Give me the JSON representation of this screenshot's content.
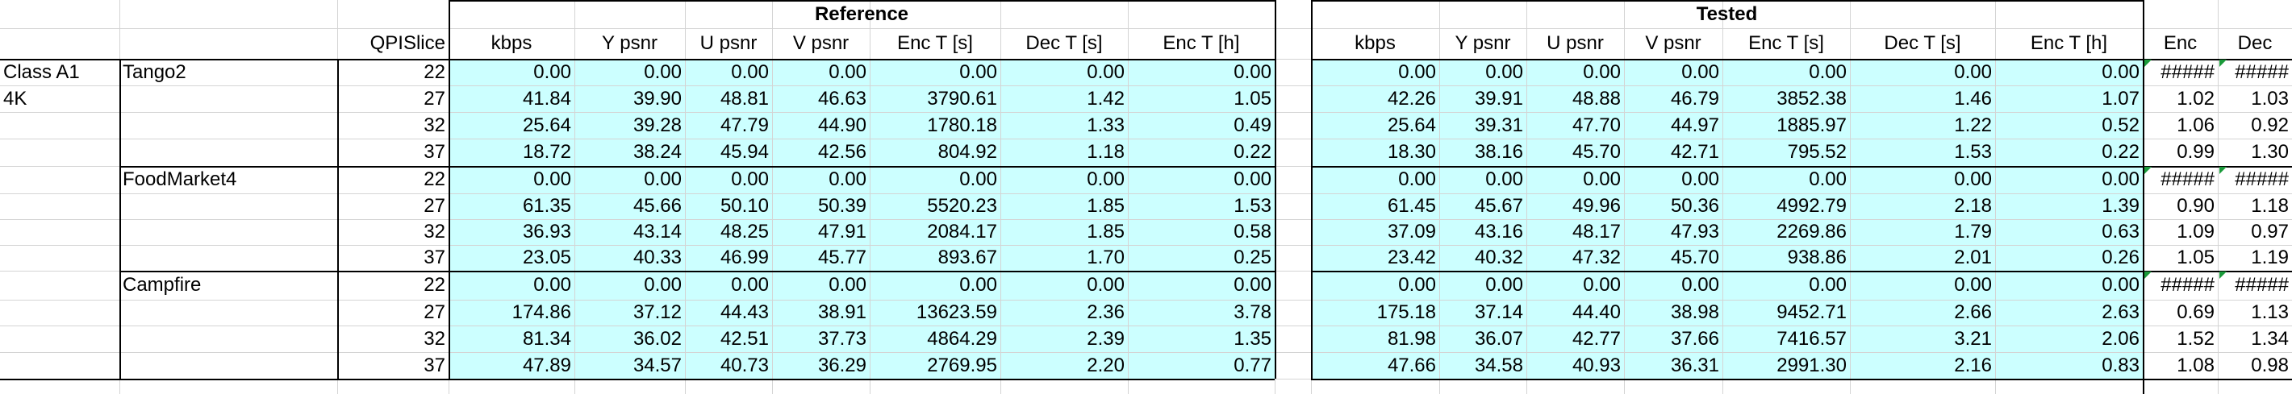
{
  "headers": {
    "reference_group": "Reference",
    "tested_group": "Tested",
    "qp_label": "QPISlice",
    "reference_columns": [
      "kbps",
      "Y psnr",
      "U psnr",
      "V psnr",
      "Enc T [s]",
      "Dec T [s]",
      "Enc T [h]"
    ],
    "tested_columns": [
      "kbps",
      "Y psnr",
      "U psnr",
      "V psnr",
      "Enc T [s]",
      "Dec T [s]",
      "Enc T [h]"
    ],
    "ratio_columns": [
      "Enc",
      "Dec"
    ]
  },
  "class_label": [
    "Class A1",
    "4K"
  ],
  "sequences": [
    {
      "name": "Tango2",
      "rows": [
        {
          "qp": "22",
          "ref": [
            "0.00",
            "0.00",
            "0.00",
            "0.00",
            "0.00",
            "0.00",
            "0.00"
          ],
          "test": [
            "0.00",
            "0.00",
            "0.00",
            "0.00",
            "0.00",
            "0.00",
            "0.00"
          ],
          "ratio": [
            "#####",
            "#####"
          ]
        },
        {
          "qp": "27",
          "ref": [
            "41.84",
            "39.90",
            "48.81",
            "46.63",
            "3790.61",
            "1.42",
            "1.05"
          ],
          "test": [
            "42.26",
            "39.91",
            "48.88",
            "46.79",
            "3852.38",
            "1.46",
            "1.07"
          ],
          "ratio": [
            "1.02",
            "1.03"
          ]
        },
        {
          "qp": "32",
          "ref": [
            "25.64",
            "39.28",
            "47.79",
            "44.90",
            "1780.18",
            "1.33",
            "0.49"
          ],
          "test": [
            "25.64",
            "39.31",
            "47.70",
            "44.97",
            "1885.97",
            "1.22",
            "0.52"
          ],
          "ratio": [
            "1.06",
            "0.92"
          ]
        },
        {
          "qp": "37",
          "ref": [
            "18.72",
            "38.24",
            "45.94",
            "42.56",
            "804.92",
            "1.18",
            "0.22"
          ],
          "test": [
            "18.30",
            "38.16",
            "45.70",
            "42.71",
            "795.52",
            "1.53",
            "0.22"
          ],
          "ratio": [
            "0.99",
            "1.30"
          ]
        }
      ]
    },
    {
      "name": "FoodMarket4",
      "rows": [
        {
          "qp": "22",
          "ref": [
            "0.00",
            "0.00",
            "0.00",
            "0.00",
            "0.00",
            "0.00",
            "0.00"
          ],
          "test": [
            "0.00",
            "0.00",
            "0.00",
            "0.00",
            "0.00",
            "0.00",
            "0.00"
          ],
          "ratio": [
            "#####",
            "#####"
          ]
        },
        {
          "qp": "27",
          "ref": [
            "61.35",
            "45.66",
            "50.10",
            "50.39",
            "5520.23",
            "1.85",
            "1.53"
          ],
          "test": [
            "61.45",
            "45.67",
            "49.96",
            "50.36",
            "4992.79",
            "2.18",
            "1.39"
          ],
          "ratio": [
            "0.90",
            "1.18"
          ]
        },
        {
          "qp": "32",
          "ref": [
            "36.93",
            "43.14",
            "48.25",
            "47.91",
            "2084.17",
            "1.85",
            "0.58"
          ],
          "test": [
            "37.09",
            "43.16",
            "48.17",
            "47.93",
            "2269.86",
            "1.79",
            "0.63"
          ],
          "ratio": [
            "1.09",
            "0.97"
          ]
        },
        {
          "qp": "37",
          "ref": [
            "23.05",
            "40.33",
            "46.99",
            "45.77",
            "893.67",
            "1.70",
            "0.25"
          ],
          "test": [
            "23.42",
            "40.32",
            "47.32",
            "45.70",
            "938.86",
            "2.01",
            "0.26"
          ],
          "ratio": [
            "1.05",
            "1.19"
          ]
        }
      ]
    },
    {
      "name": "Campfire",
      "rows": [
        {
          "qp": "22",
          "ref": [
            "0.00",
            "0.00",
            "0.00",
            "0.00",
            "0.00",
            "0.00",
            "0.00"
          ],
          "test": [
            "0.00",
            "0.00",
            "0.00",
            "0.00",
            "0.00",
            "0.00",
            "0.00"
          ],
          "ratio": [
            "#####",
            "#####"
          ]
        },
        {
          "qp": "27",
          "ref": [
            "174.86",
            "37.12",
            "44.43",
            "38.91",
            "13623.59",
            "2.36",
            "3.78"
          ],
          "test": [
            "175.18",
            "37.14",
            "44.40",
            "38.98",
            "9452.71",
            "2.66",
            "2.63"
          ],
          "ratio": [
            "0.69",
            "1.13"
          ]
        },
        {
          "qp": "32",
          "ref": [
            "81.34",
            "36.02",
            "42.51",
            "37.73",
            "4864.29",
            "2.39",
            "1.35"
          ],
          "test": [
            "81.98",
            "36.07",
            "42.77",
            "37.66",
            "7416.57",
            "3.21",
            "2.06"
          ],
          "ratio": [
            "1.52",
            "1.34"
          ]
        },
        {
          "qp": "37",
          "ref": [
            "47.89",
            "34.57",
            "40.73",
            "36.29",
            "2769.95",
            "2.20",
            "0.77"
          ],
          "test": [
            "47.66",
            "34.58",
            "40.93",
            "36.31",
            "2991.30",
            "2.16",
            "0.83"
          ],
          "ratio": [
            "1.08",
            "0.98"
          ]
        }
      ]
    }
  ],
  "colors": {
    "data_fill": "#ccffff",
    "comment_marker": "#1a9a3a",
    "grid": "#d4d4d4",
    "border": "#000000"
  }
}
